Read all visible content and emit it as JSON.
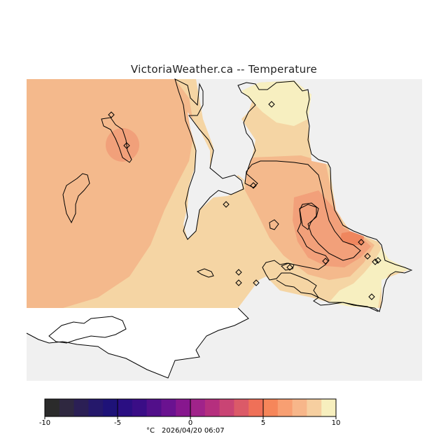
{
  "title": "VictoriaWeather.ca -- Temperature",
  "colors": {
    "water": "#f0f0f0",
    "land_outline": "#000000",
    "no_data": "#ffffff"
  },
  "legend": {
    "min": -10,
    "max": 10,
    "tick_labels": [
      "-10",
      "-5",
      "0",
      "5",
      "10"
    ],
    "caption_unit": "°C",
    "caption_time": "2026/04/20 06:07",
    "colors": [
      "#2b2b2b",
      "#2f2840",
      "#2b1f55",
      "#25186b",
      "#1e1278",
      "#2a0e82",
      "#3a0d86",
      "#520f8a",
      "#6a1290",
      "#87178e",
      "#a0238a",
      "#b52f7e",
      "#c94474",
      "#db5a68",
      "#ef7058",
      "#f6865a",
      "#f89f72",
      "#f7b68a",
      "#f6cfa0",
      "#f7efbe"
    ]
  },
  "stations": {
    "count": 15
  }
}
